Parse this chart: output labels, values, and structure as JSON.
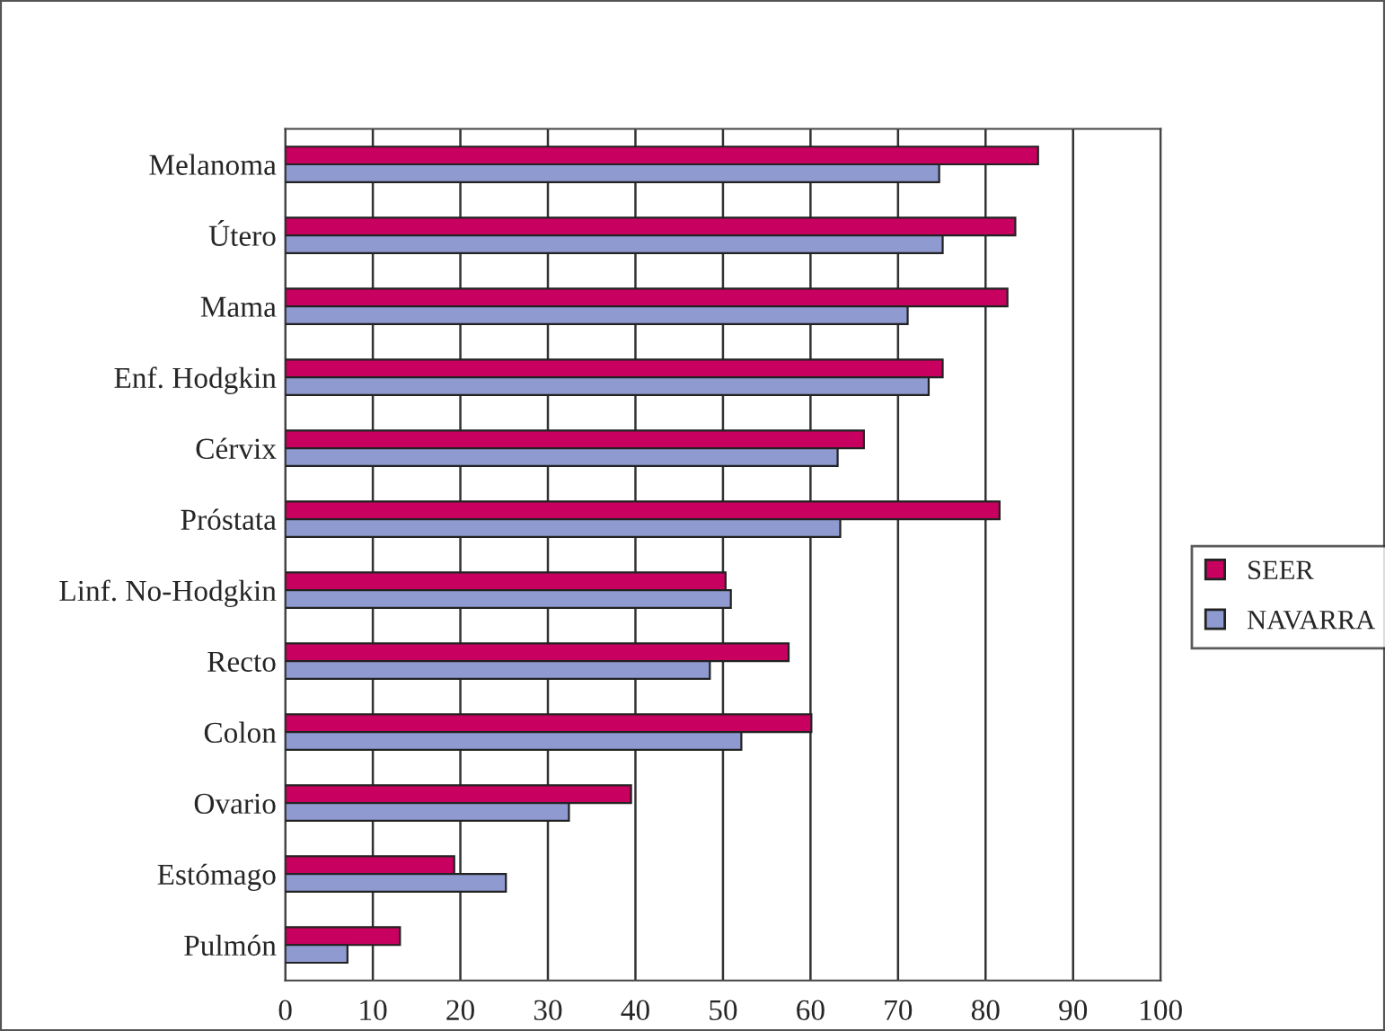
{
  "chart_data": {
    "type": "bar",
    "orientation": "horizontal",
    "categories": [
      "Melanoma",
      "Útero",
      "Mama",
      "Enf. Hodgkin",
      "Cérvix",
      "Próstata",
      "Linf. No-Hodgkin",
      "Recto",
      "Colon",
      "Ovario",
      "Estómago",
      "Pulmón"
    ],
    "series": [
      {
        "name": "SEER",
        "color": "#c8005f",
        "values": [
          86.0,
          83.4,
          82.5,
          75.1,
          66.1,
          81.6,
          50.3,
          57.5,
          60.1,
          39.5,
          19.3,
          13.1
        ]
      },
      {
        "name": "NAVARRA",
        "color": "#8f9bd0",
        "values": [
          74.7,
          75.1,
          71.1,
          73.5,
          63.1,
          63.4,
          50.9,
          48.5,
          52.1,
          32.4,
          25.2,
          7.1
        ]
      }
    ],
    "xlim": [
      0,
      100
    ],
    "xticks": [
      0,
      10,
      20,
      30,
      40,
      50,
      60,
      70,
      80,
      90,
      100
    ],
    "grid": "x",
    "legend": "right"
  }
}
